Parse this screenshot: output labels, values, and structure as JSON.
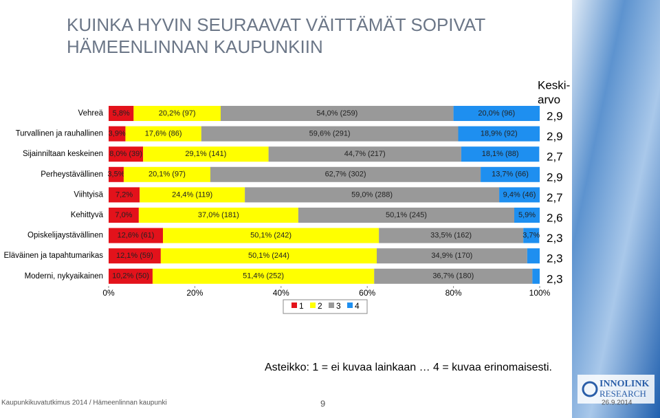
{
  "header": {
    "title": [
      "KUINKA HYVIN SEURAAVAT VÄITTÄMÄT SOPIVAT",
      "HÄMEENLINNAN KAUPUNKIIN"
    ]
  },
  "chart_data": {
    "type": "stacked-bar-horizontal",
    "categories": [
      "Vehreä",
      "Turvallinen ja rauhallinen",
      "Sijainniltaan keskeinen",
      "Perheystävällinen",
      "Viihtyisä",
      "Kehittyvä",
      "Opiskelijaystävällinen",
      "Eläväinen ja tapahtumarikas",
      "Moderni, nykyaikainen"
    ],
    "series": [
      {
        "name": "1",
        "color": "#e3121b",
        "values": [
          5.8,
          3.9,
          8.0,
          3.5,
          7.2,
          7.0,
          12.6,
          12.1,
          10.2
        ],
        "value_labels": [
          "5,8%",
          "3,9%",
          "8,0% (39)",
          "3,5%",
          "7,2%",
          "7,0%",
          "12,6% (61)",
          "12,1% (59)",
          "10,2% (50)"
        ]
      },
      {
        "name": "2",
        "color": "#ffff00",
        "values": [
          20.2,
          17.6,
          29.1,
          20.1,
          24.4,
          37.0,
          50.1,
          50.1,
          51.4
        ],
        "value_labels": [
          "20,2% (97)",
          "17,6% (86)",
          "29,1% (141)",
          "20,1% (97)",
          "24,4% (119)",
          "37,0% (181)",
          "50,1% (242)",
          "50,1% (244)",
          "51,4% (252)"
        ]
      },
      {
        "name": "3",
        "color": "#999999",
        "values": [
          54.0,
          59.6,
          44.7,
          62.7,
          59.0,
          50.1,
          33.5,
          34.9,
          36.7
        ],
        "value_labels": [
          "54,0% (259)",
          "59,6% (291)",
          "44,7% (217)",
          "62,7% (302)",
          "59,0% (288)",
          "50,1% (245)",
          "33,5% (162)",
          "34,9% (170)",
          "36,7% (180)"
        ]
      },
      {
        "name": "4",
        "color": "#1e8ff0",
        "values": [
          20.0,
          18.9,
          18.1,
          13.7,
          9.4,
          5.9,
          3.7,
          2.9,
          1.7
        ],
        "value_labels": [
          "20,0% (96)",
          "18,9% (92)",
          "18,1% (88)",
          "13,7% (66)",
          "9,4% (46)",
          "5,9%",
          "3,7%",
          null,
          null
        ]
      }
    ],
    "xlim": [
      0,
      100
    ],
    "xticks": [
      {
        "value": 0,
        "label": "0%"
      },
      {
        "value": 20,
        "label": "20%"
      },
      {
        "value": 40,
        "label": "40%"
      },
      {
        "value": 60,
        "label": "60%"
      },
      {
        "value": 80,
        "label": "80%"
      },
      {
        "value": 100,
        "label": "100%"
      }
    ],
    "average_header": [
      "Keski-",
      "arvo"
    ],
    "averages": [
      "2,9",
      "2,9",
      "2,7",
      "2,9",
      "2,7",
      "2,6",
      "2,3",
      "2,3",
      "2,3"
    ],
    "legend": "bottom",
    "note": "Asteikko: 1 = ei kuvaa lainkaan … 4 = kuvaa erinomaisesti."
  },
  "footer": {
    "source": "Kaupunkikuvatutkimus 2014 / Hämeenlinnan kaupunki",
    "page": "9",
    "date": "26.9.2014"
  },
  "logo": [
    "INNOLINK",
    "RESEARCH"
  ]
}
